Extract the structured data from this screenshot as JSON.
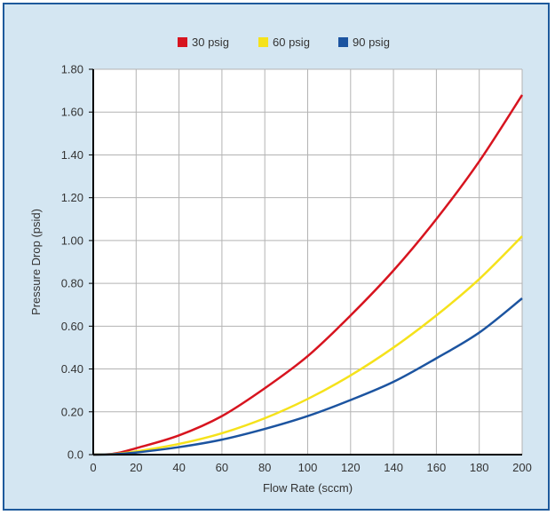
{
  "chart_data": {
    "type": "line",
    "xlabel": "Flow Rate (sccm)",
    "ylabel": "Pressure Drop (psid)",
    "xlim": [
      0,
      200
    ],
    "ylim": [
      0,
      1.8
    ],
    "x_ticks": [
      "0",
      "20",
      "40",
      "60",
      "80",
      "100",
      "120",
      "140",
      "160",
      "180",
      "200"
    ],
    "y_ticks": [
      "0.0",
      "0.20",
      "0.40",
      "0.60",
      "0.80",
      "1.00",
      "1.20",
      "1.40",
      "1.60",
      "1.80"
    ],
    "grid": true,
    "legend_position": "top-center",
    "x": [
      10,
      20,
      40,
      60,
      80,
      100,
      120,
      140,
      160,
      180,
      200
    ],
    "series": [
      {
        "name": "30 psig",
        "color": "#d7141f",
        "values": [
          0.005,
          0.03,
          0.09,
          0.18,
          0.31,
          0.46,
          0.65,
          0.86,
          1.1,
          1.37,
          1.68
        ]
      },
      {
        "name": "60 psig",
        "color": "#f5e21b",
        "values": [
          0.003,
          0.015,
          0.05,
          0.1,
          0.17,
          0.26,
          0.37,
          0.5,
          0.65,
          0.82,
          1.02
        ]
      },
      {
        "name": "90 psig",
        "color": "#1c54a0",
        "values": [
          0.002,
          0.01,
          0.035,
          0.07,
          0.12,
          0.18,
          0.255,
          0.34,
          0.45,
          0.57,
          0.73
        ]
      }
    ]
  }
}
